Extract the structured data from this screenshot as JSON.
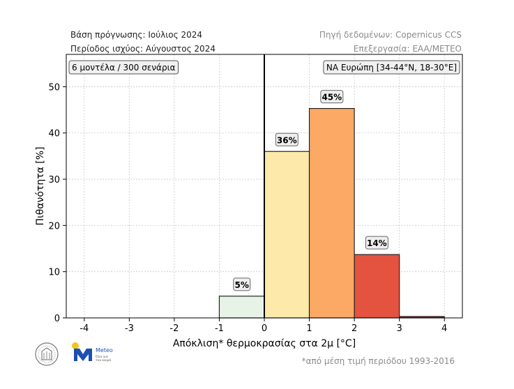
{
  "header": {
    "forecast_base": "Βάση πρόγνωσης: Ιούλιος 2024",
    "validity_period": "Περίοδος ισχύος: Αύγουστος 2024",
    "data_source": "Πηγή δεδομένων: Copernicus CCS",
    "processing": "Επεξεργασία: EAA/METEO"
  },
  "chart_data": {
    "type": "bar",
    "bins": [
      [
        -1,
        0
      ],
      [
        0,
        1
      ],
      [
        1,
        2
      ],
      [
        2,
        3
      ],
      [
        3,
        4
      ]
    ],
    "values": [
      4.7,
      36.0,
      45.3,
      13.7,
      0.3
    ],
    "data_labels": [
      "5%",
      "36%",
      "45%",
      "14%",
      ""
    ],
    "bar_colors": [
      "#e8f3e8",
      "#fde9a9",
      "#fba964",
      "#e4533f",
      "#b2182b"
    ],
    "xlabel": "Απόκλιση* θερμοκρασίας στα 2μ [°C]",
    "ylabel": "Πιθανότητα [%]",
    "xlim": [
      -4.4,
      4.4
    ],
    "ylim": [
      0,
      57
    ],
    "xticks": [
      -4,
      -3,
      -2,
      -1,
      0,
      1,
      2,
      3,
      4
    ],
    "xtick_labels": [
      "-4",
      "-3",
      "-2",
      "-1",
      "0",
      "1",
      "2",
      "3",
      "4"
    ],
    "yticks": [
      0,
      10,
      20,
      30,
      40,
      50
    ],
    "ytick_labels": [
      "0",
      "10",
      "20",
      "30",
      "40",
      "50"
    ],
    "grid": true,
    "reference_line_x": 0,
    "annotation_left": "6 μοντέλα / 300 σενάρια",
    "annotation_right": "ΝΑ Ευρώπη [34-44°N, 18-30°E]"
  },
  "footnote": "*από μέση τιμή περιόδου 1993-2016",
  "logos": {
    "meteo_name": "Meteo",
    "meteo_tagline_1": "Όλα για",
    "meteo_tagline_2": "τον καιρό",
    "meteo_color": "#1d4fb3",
    "sun_color": "#f5c518"
  }
}
